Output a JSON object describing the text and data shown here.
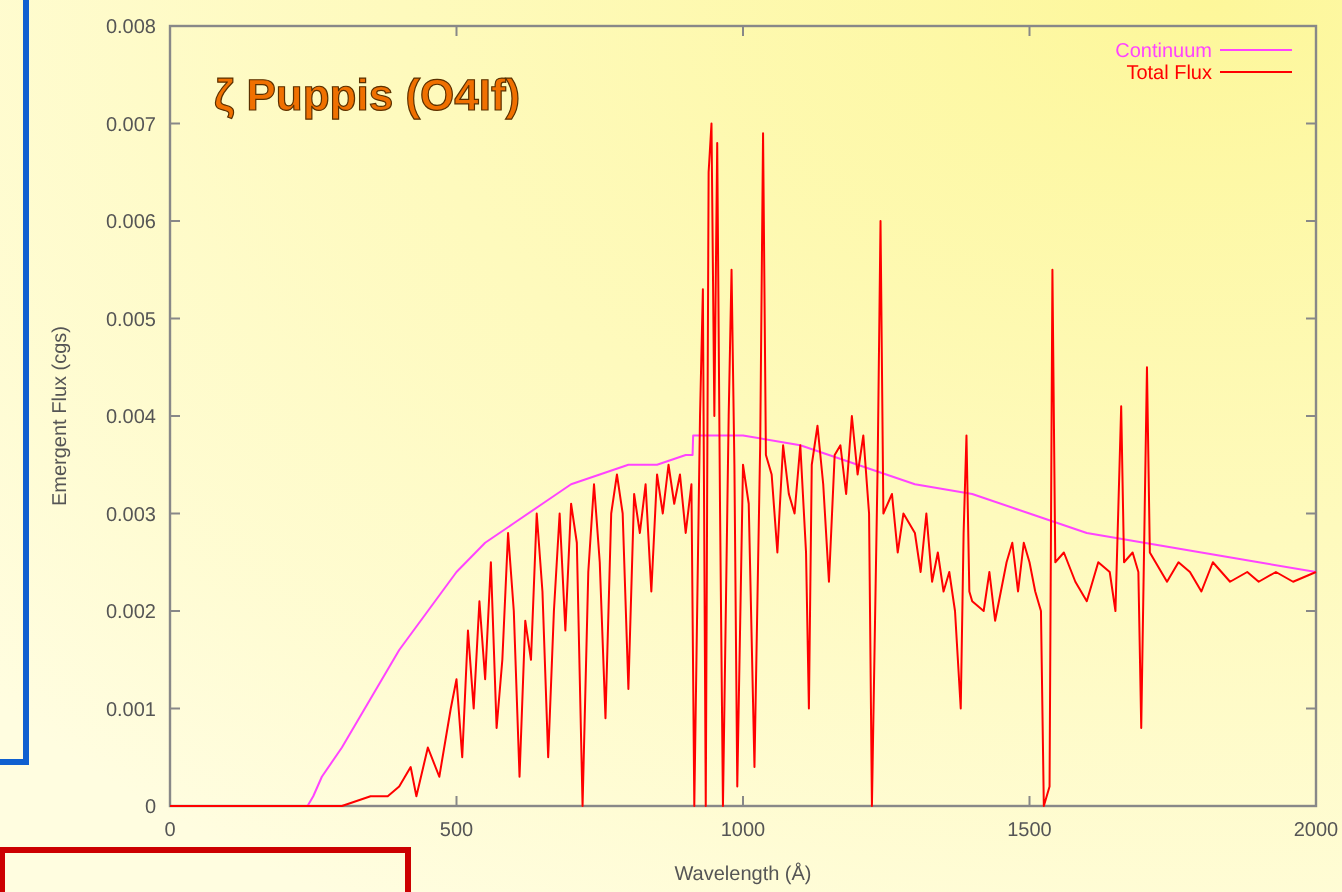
{
  "chart_data": {
    "type": "line",
    "title": "ζ Puppis (O4If)",
    "xlabel": "Wavelength (Å)",
    "ylabel": "Emergent Flux (cgs)",
    "xlim": [
      0,
      2000
    ],
    "ylim": [
      0,
      0.008
    ],
    "xticks": [
      0,
      500,
      1000,
      1500,
      2000
    ],
    "yticks": [
      0,
      0.001,
      0.002,
      0.003,
      0.004,
      0.005,
      0.006,
      0.007,
      0.008
    ],
    "grid": false,
    "legend": "top right",
    "line_style": "solid",
    "marker": "none",
    "series": [
      {
        "name": "Continuum",
        "color": "#ff44ff",
        "x": [
          0,
          240,
          250,
          265,
          300,
          350,
          400,
          450,
          500,
          550,
          600,
          650,
          700,
          750,
          800,
          850,
          900,
          912,
          913,
          1000,
          1100,
          1200,
          1300,
          1400,
          1500,
          1600,
          1700,
          1800,
          1900,
          2000
        ],
        "values": [
          0,
          0,
          0.0001,
          0.0003,
          0.0006,
          0.0011,
          0.0016,
          0.002,
          0.0024,
          0.0027,
          0.0029,
          0.0031,
          0.0033,
          0.0034,
          0.0035,
          0.0035,
          0.0036,
          0.0036,
          0.0038,
          0.0038,
          0.0037,
          0.0035,
          0.0033,
          0.0032,
          0.003,
          0.0028,
          0.0027,
          0.0026,
          0.0025,
          0.0024
        ]
      },
      {
        "name": "Total Flux",
        "color": "#ff0000",
        "x": [
          0,
          300,
          350,
          380,
          400,
          420,
          430,
          450,
          470,
          490,
          500,
          510,
          520,
          530,
          540,
          550,
          560,
          570,
          580,
          590,
          600,
          610,
          620,
          630,
          640,
          650,
          660,
          670,
          680,
          690,
          700,
          710,
          720,
          730,
          740,
          750,
          760,
          770,
          780,
          790,
          800,
          810,
          820,
          830,
          840,
          850,
          860,
          870,
          880,
          890,
          900,
          910,
          915,
          925,
          930,
          935,
          940,
          945,
          950,
          955,
          960,
          965,
          975,
          980,
          985,
          990,
          1000,
          1010,
          1020,
          1030,
          1035,
          1040,
          1050,
          1060,
          1070,
          1080,
          1090,
          1100,
          1110,
          1115,
          1120,
          1130,
          1140,
          1150,
          1160,
          1170,
          1180,
          1190,
          1200,
          1210,
          1220,
          1225,
          1235,
          1240,
          1245,
          1260,
          1270,
          1280,
          1300,
          1310,
          1320,
          1330,
          1340,
          1350,
          1360,
          1370,
          1380,
          1385,
          1390,
          1395,
          1400,
          1420,
          1430,
          1440,
          1460,
          1470,
          1480,
          1490,
          1500,
          1510,
          1520,
          1525,
          1535,
          1540,
          1545,
          1560,
          1580,
          1600,
          1620,
          1640,
          1650,
          1660,
          1665,
          1680,
          1690,
          1695,
          1705,
          1710,
          1720,
          1740,
          1760,
          1780,
          1800,
          1820,
          1850,
          1880,
          1900,
          1930,
          1960,
          2000
        ],
        "values": [
          0,
          0,
          0.0001,
          0.0001,
          0.0002,
          0.0004,
          0.0001,
          0.0006,
          0.0003,
          0.001,
          0.0013,
          0.0005,
          0.0018,
          0.001,
          0.0021,
          0.0013,
          0.0025,
          0.0008,
          0.0015,
          0.0028,
          0.002,
          0.0003,
          0.0019,
          0.0015,
          0.003,
          0.0022,
          0.0005,
          0.002,
          0.003,
          0.0018,
          0.0031,
          0.0027,
          0,
          0.0024,
          0.0033,
          0.0025,
          0.0009,
          0.003,
          0.0034,
          0.003,
          0.0012,
          0.0032,
          0.0028,
          0.0033,
          0.0022,
          0.0034,
          0.003,
          0.0035,
          0.0031,
          0.0034,
          0.0028,
          0.0033,
          0,
          0.004,
          0.0053,
          0,
          0.0065,
          0.007,
          0.004,
          0.0068,
          0.003,
          0,
          0.004,
          0.0055,
          0.0035,
          0.0002,
          0.0035,
          0.0031,
          0.0004,
          0.0037,
          0.0069,
          0.0036,
          0.0034,
          0.0026,
          0.0037,
          0.0032,
          0.003,
          0.0037,
          0.0026,
          0.001,
          0.0035,
          0.0039,
          0.0033,
          0.0023,
          0.0036,
          0.0037,
          0.0032,
          0.004,
          0.0034,
          0.0038,
          0.003,
          0,
          0.0035,
          0.006,
          0.003,
          0.0032,
          0.0026,
          0.003,
          0.0028,
          0.0024,
          0.003,
          0.0023,
          0.0026,
          0.0022,
          0.0024,
          0.002,
          0.001,
          0.0028,
          0.0038,
          0.0022,
          0.0021,
          0.002,
          0.0024,
          0.0019,
          0.0025,
          0.0027,
          0.0022,
          0.0027,
          0.0025,
          0.0022,
          0.002,
          0,
          0.0002,
          0.0055,
          0.0025,
          0.0026,
          0.0023,
          0.0021,
          0.0025,
          0.0024,
          0.002,
          0.0041,
          0.0025,
          0.0026,
          0.0024,
          0.0008,
          0.0045,
          0.0026,
          0.0025,
          0.0023,
          0.0025,
          0.0024,
          0.0022,
          0.0025,
          0.0023,
          0.0024,
          0.0023,
          0.0024,
          0.0023,
          0.0024
        ]
      }
    ]
  }
}
